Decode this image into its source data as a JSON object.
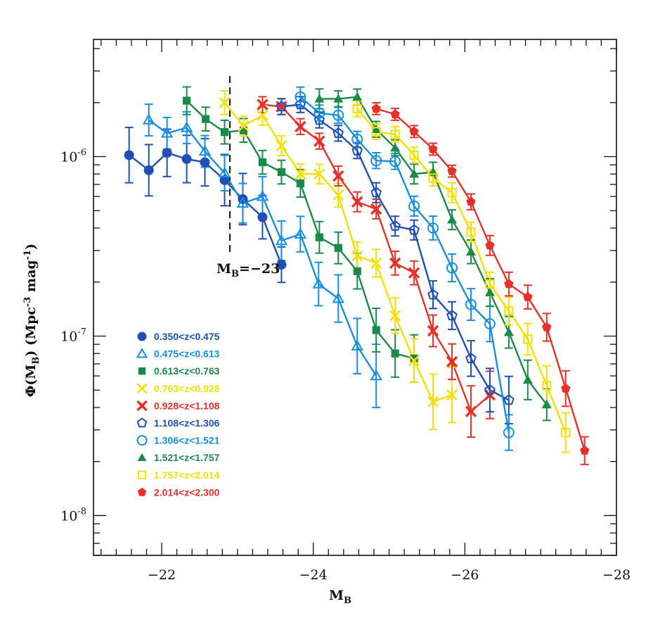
{
  "chart_data": {
    "type": "line",
    "title": "",
    "xlabel": "M",
    "xlabel_sub": "B",
    "ylabel": "Φ(M",
    "ylabel_sub": "B",
    "ylabel_rest": ") (Mpc",
    "ylabel_sup1": "-3",
    "ylabel_mid": " mag",
    "ylabel_sup2": "-1",
    "ylabel_end": ")",
    "xlim": [
      -21.1,
      -28
    ],
    "ylim": [
      6e-09,
      4.5e-06
    ],
    "yscale": "log",
    "grid": false,
    "legend_position": "lower-left",
    "x_ticks": [
      {
        "value": -22,
        "label": "−22"
      },
      {
        "value": -24,
        "label": "−24"
      },
      {
        "value": -26,
        "label": "−26"
      },
      {
        "value": -28,
        "label": "−28"
      }
    ],
    "y_ticks": [
      {
        "value": 1e-06,
        "base": "10",
        "exp": "-6"
      },
      {
        "value": 1e-07,
        "base": "10",
        "exp": "-7"
      },
      {
        "value": 1e-08,
        "base": "10",
        "exp": "-8"
      }
    ],
    "annotation": {
      "text_pre": "M",
      "text_sub": "B",
      "text_post": "=−23",
      "x": -22.9
    },
    "series": [
      {
        "name": "0.350<z<0.475",
        "color": "#1f4fb5",
        "marker": "circle-filled",
        "x": [
          -21.57,
          -21.83,
          -22.07,
          -22.33,
          -22.57,
          -22.83,
          -23.07,
          -23.33,
          -23.58
        ],
        "y": [
          1.02e-06,
          8.4e-07,
          1.05e-06,
          9.7e-07,
          9.3e-07,
          7.4e-07,
          5.8e-07,
          4.6e-07,
          2.5e-07
        ],
        "err": [
          0.28,
          0.26,
          0.24,
          0.24,
          0.24,
          0.26,
          0.26,
          0.22,
          0.18
        ]
      },
      {
        "name": "0.475<z<0.613",
        "color": "#1590e0",
        "marker": "triangle-open",
        "x": [
          -21.83,
          -22.07,
          -22.33,
          -22.57,
          -22.83,
          -23.07,
          -23.33,
          -23.58,
          -23.83,
          -24.07,
          -24.33,
          -24.58,
          -24.83
        ],
        "y": [
          1.6e-06,
          1.35e-06,
          1.45e-06,
          1.07e-06,
          8.1e-07,
          5.5e-07,
          6e-07,
          3.4e-07,
          3.7e-07,
          1.95e-07,
          1.62e-07,
          8.8e-08,
          6e-08
        ],
        "err": [
          0.16,
          0.16,
          0.16,
          0.16,
          0.18,
          0.2,
          0.2,
          0.2,
          0.18,
          0.22,
          0.24,
          0.28,
          0.32
        ]
      },
      {
        "name": "0.613<z<0.763",
        "color": "#1a8a4a",
        "marker": "square-filled",
        "x": [
          -22.33,
          -22.58,
          -22.83,
          -23.08,
          -23.33,
          -23.58,
          -23.83,
          -24.08,
          -24.33,
          -24.58,
          -24.83,
          -25.08,
          -25.33
        ],
        "y": [
          2.05e-06,
          1.62e-06,
          1.37e-06,
          1.4e-06,
          9.3e-07,
          8.2e-07,
          7.1e-07,
          3.55e-07,
          3.1e-07,
          2.3e-07,
          1.08e-07,
          8e-08,
          7.5e-08
        ],
        "err": [
          0.14,
          0.12,
          0.12,
          0.12,
          0.12,
          0.12,
          0.14,
          0.16,
          0.16,
          0.18,
          0.22,
          0.24,
          0.24
        ]
      },
      {
        "name": "0.763<z<0.928",
        "color": "#f5e000",
        "marker": "cross",
        "x": [
          -22.83,
          -23.08,
          -23.33,
          -23.58,
          -23.83,
          -24.08,
          -24.33,
          -24.58,
          -24.83,
          -25.08,
          -25.33,
          -25.58,
          -25.83
        ],
        "y": [
          2e-06,
          1.48e-06,
          1.7e-06,
          1.15e-06,
          8e-07,
          8e-07,
          6.1e-07,
          2.8e-07,
          2.55e-07,
          1.3e-07,
          7.3e-08,
          4.3e-08,
          4.7e-08
        ],
        "err": [
          0.12,
          0.1,
          0.1,
          0.1,
          0.1,
          0.1,
          0.12,
          0.14,
          0.14,
          0.18,
          0.22,
          0.28,
          0.28
        ]
      },
      {
        "name": "0.928<z<1.108",
        "color": "#e8302a",
        "marker": "star-filled",
        "x": [
          -23.33,
          -23.58,
          -23.83,
          -24.08,
          -24.33,
          -24.58,
          -24.83,
          -25.08,
          -25.33,
          -25.58,
          -25.83,
          -26.08,
          -26.33
        ],
        "y": [
          1.95e-06,
          1.9e-06,
          1.47e-06,
          1.22e-06,
          7.8e-07,
          5.6e-07,
          5.1e-07,
          2.55e-07,
          2.25e-07,
          1.07e-07,
          7.2e-08,
          3.8e-08,
          4.7e-08
        ],
        "err": [
          0.08,
          0.08,
          0.08,
          0.08,
          0.1,
          0.1,
          0.1,
          0.12,
          0.12,
          0.16,
          0.18,
          0.26,
          0.24
        ]
      },
      {
        "name": "1.108<z<1.306",
        "color": "#1f4fb5",
        "marker": "pentagon-open",
        "x": [
          -23.58,
          -23.83,
          -24.08,
          -24.33,
          -24.58,
          -24.83,
          -25.08,
          -25.33,
          -25.58,
          -25.83,
          -26.08,
          -26.33,
          -26.58
        ],
        "y": [
          1.9e-06,
          1.95e-06,
          1.6e-06,
          1.35e-06,
          1.08e-06,
          6.3e-07,
          4.1e-07,
          3.9e-07,
          1.7e-07,
          1.3e-07,
          7.5e-08,
          5e-08,
          4.4e-08
        ],
        "err": [
          0.08,
          0.08,
          0.08,
          0.08,
          0.08,
          0.1,
          0.1,
          0.1,
          0.14,
          0.14,
          0.18,
          0.22,
          0.24
        ]
      },
      {
        "name": "1.306<z<1.521",
        "color": "#1590e0",
        "marker": "circle-open",
        "x": [
          -23.83,
          -24.08,
          -24.33,
          -24.58,
          -24.83,
          -25.08,
          -25.33,
          -25.58,
          -25.83,
          -26.08,
          -26.33,
          -26.58
        ],
        "y": [
          2.15e-06,
          1.75e-06,
          1.7e-06,
          1.25e-06,
          9.5e-07,
          9.4e-07,
          5.3e-07,
          4e-07,
          2.4e-07,
          1.5e-07,
          1.17e-07,
          2.9e-08
        ],
        "err": [
          0.1,
          0.08,
          0.08,
          0.08,
          0.08,
          0.08,
          0.1,
          0.12,
          0.14,
          0.16,
          0.18,
          0.18
        ]
      },
      {
        "name": "1.521<z<1.757",
        "color": "#1a8a4a",
        "marker": "triangle-filled",
        "x": [
          -24.08,
          -24.33,
          -24.58,
          -24.83,
          -25.08,
          -25.33,
          -25.58,
          -25.83,
          -26.08,
          -26.33,
          -26.58,
          -26.83,
          -27.08
        ],
        "y": [
          2.1e-06,
          2.1e-06,
          2.15e-06,
          1.42e-06,
          1.12e-06,
          8e-07,
          8.2e-07,
          4.45e-07,
          2.95e-07,
          1.75e-07,
          1.05e-07,
          5.7e-08,
          4.15e-08
        ],
        "err": [
          0.1,
          0.08,
          0.08,
          0.08,
          0.08,
          0.1,
          0.1,
          0.1,
          0.12,
          0.14,
          0.16,
          0.2,
          0.16
        ]
      },
      {
        "name": "1.757<z<2.014",
        "color": "#f5e000",
        "marker": "square-open",
        "x": [
          -24.58,
          -24.83,
          -25.08,
          -25.33,
          -25.58,
          -25.83,
          -26.08,
          -26.33,
          -26.58,
          -26.83,
          -27.08,
          -27.33
        ],
        "y": [
          1.85e-06,
          1.38e-06,
          1.33e-06,
          1.02e-06,
          7.6e-07,
          6.3e-07,
          3.8e-07,
          1.95e-07,
          1.38e-07,
          9.6e-08,
          5.3e-08,
          2.9e-08
        ],
        "err": [
          0.08,
          0.08,
          0.08,
          0.08,
          0.08,
          0.1,
          0.1,
          0.12,
          0.14,
          0.16,
          0.2,
          0.2
        ]
      },
      {
        "name": "2.014<z<2.300",
        "color": "#e8302a",
        "marker": "pentagon-filled",
        "x": [
          -24.83,
          -25.08,
          -25.33,
          -25.58,
          -25.83,
          -26.08,
          -26.33,
          -26.58,
          -26.83,
          -27.08,
          -27.33,
          -27.58
        ],
        "y": [
          1.85e-06,
          1.72e-06,
          1.38e-06,
          1.1e-06,
          8.3e-07,
          5.6e-07,
          3.2e-07,
          1.95e-07,
          1.65e-07,
          1.12e-07,
          5.1e-08,
          2.3e-08
        ],
        "err": [
          0.06,
          0.06,
          0.06,
          0.06,
          0.06,
          0.08,
          0.1,
          0.12,
          0.12,
          0.14,
          0.18,
          0.14
        ]
      }
    ]
  }
}
